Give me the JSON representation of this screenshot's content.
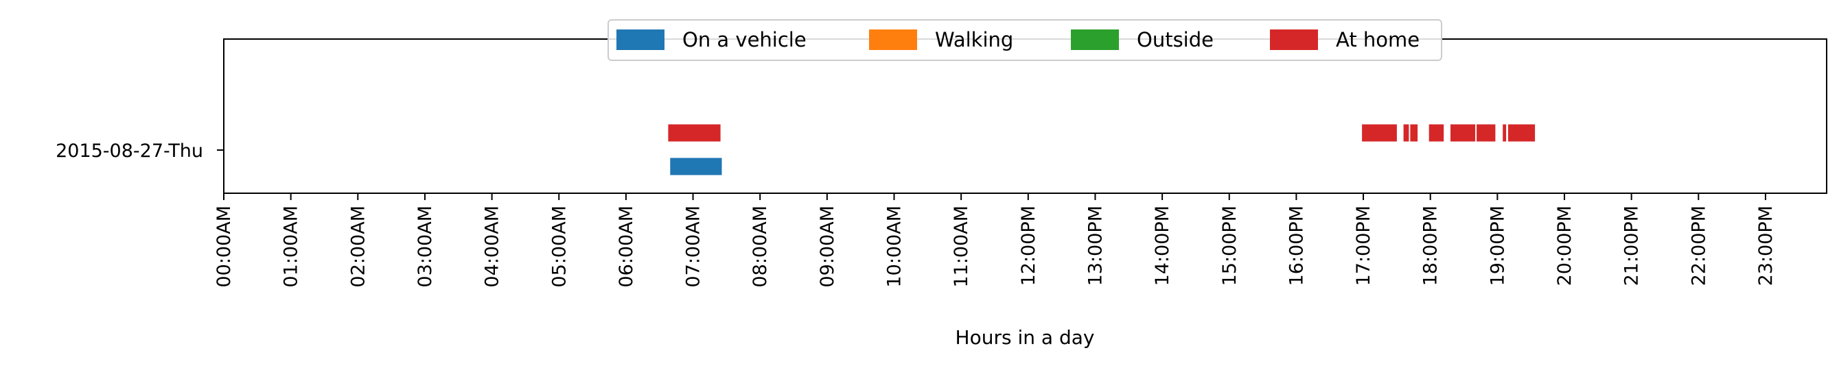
{
  "chart_data": {
    "type": "timeline",
    "title": "",
    "xlabel": "Hours in a day",
    "ylabel": "",
    "xlim": [
      0,
      24
    ],
    "x_unit": "hours",
    "grid": false,
    "legend_placement": "top-center",
    "x_ticks": [
      {
        "value": 0,
        "label": "00:00AM"
      },
      {
        "value": 1,
        "label": "01:00AM"
      },
      {
        "value": 2,
        "label": "02:00AM"
      },
      {
        "value": 3,
        "label": "03:00AM"
      },
      {
        "value": 4,
        "label": "04:00AM"
      },
      {
        "value": 5,
        "label": "05:00AM"
      },
      {
        "value": 6,
        "label": "06:00AM"
      },
      {
        "value": 7,
        "label": "07:00AM"
      },
      {
        "value": 8,
        "label": "08:00AM"
      },
      {
        "value": 9,
        "label": "09:00AM"
      },
      {
        "value": 10,
        "label": "10:00AM"
      },
      {
        "value": 11,
        "label": "11:00AM"
      },
      {
        "value": 12,
        "label": "12:00PM"
      },
      {
        "value": 13,
        "label": "13:00PM"
      },
      {
        "value": 14,
        "label": "14:00PM"
      },
      {
        "value": 15,
        "label": "15:00PM"
      },
      {
        "value": 16,
        "label": "16:00PM"
      },
      {
        "value": 17,
        "label": "17:00PM"
      },
      {
        "value": 18,
        "label": "18:00PM"
      },
      {
        "value": 19,
        "label": "19:00PM"
      },
      {
        "value": 20,
        "label": "20:00PM"
      },
      {
        "value": 21,
        "label": "21:00PM"
      },
      {
        "value": 22,
        "label": "22:00PM"
      },
      {
        "value": 23,
        "label": "23:00PM"
      }
    ],
    "categories": [
      "2015-08-27-Thu"
    ],
    "series": [
      {
        "name": "On a vehicle",
        "color": "#1f77b4",
        "lane": 0,
        "intervals": [
          [
            6.66,
            7.43
          ]
        ]
      },
      {
        "name": "Walking",
        "color": "#ff7f0e",
        "lane": 1,
        "intervals": []
      },
      {
        "name": "Outside",
        "color": "#2ca02c",
        "lane": 2,
        "intervals": []
      },
      {
        "name": "At home",
        "color": "#d62728",
        "lane": 3,
        "intervals": [
          [
            6.63,
            7.41
          ],
          [
            16.98,
            17.5
          ],
          [
            17.6,
            17.68
          ],
          [
            17.7,
            17.81
          ],
          [
            17.98,
            18.2
          ],
          [
            18.3,
            18.67
          ],
          [
            18.69,
            18.97
          ],
          [
            19.08,
            19.13
          ],
          [
            19.16,
            19.56
          ]
        ]
      }
    ]
  }
}
